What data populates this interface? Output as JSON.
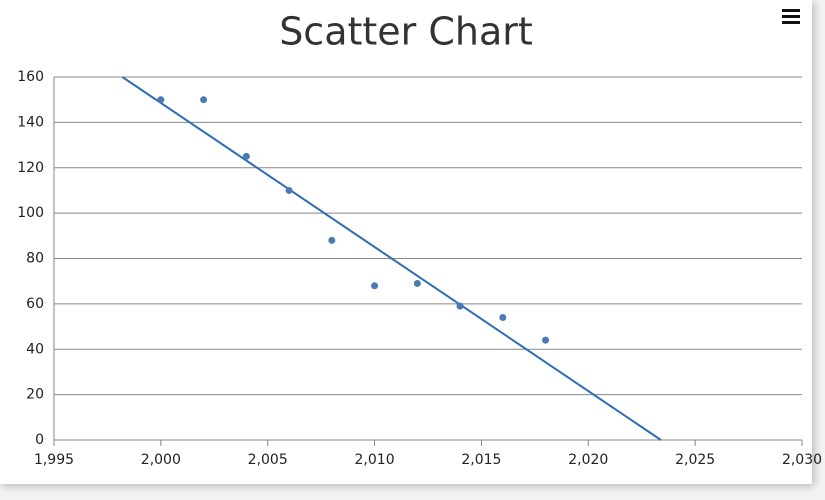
{
  "chart_data": {
    "type": "scatter",
    "title": "Scatter Chart",
    "x": [
      2000,
      2002,
      2004,
      2006,
      2008,
      2010,
      2012,
      2014,
      2016,
      2018
    ],
    "values": [
      150,
      150,
      125,
      110,
      88,
      68,
      69,
      59,
      54,
      44
    ],
    "color": "#4a7ab5",
    "trend_line": {
      "x": [
        1998.2,
        2023.4
      ],
      "values": [
        160,
        0
      ],
      "color": "#2e6db4"
    },
    "xlim": [
      1995,
      2030
    ],
    "xticks": [
      {
        "value": 1995,
        "label": "1,995"
      },
      {
        "value": 2000,
        "label": "2,000"
      },
      {
        "value": 2005,
        "label": "2,005"
      },
      {
        "value": 2010,
        "label": "2,010"
      },
      {
        "value": 2015,
        "label": "2,015"
      },
      {
        "value": 2020,
        "label": "2,020"
      },
      {
        "value": 2025,
        "label": "2,025"
      },
      {
        "value": 2030,
        "label": "2,030"
      }
    ],
    "ylim": [
      0,
      160
    ],
    "yticks": [
      0,
      20,
      40,
      60,
      80,
      100,
      120,
      140,
      160
    ],
    "grid": true
  }
}
